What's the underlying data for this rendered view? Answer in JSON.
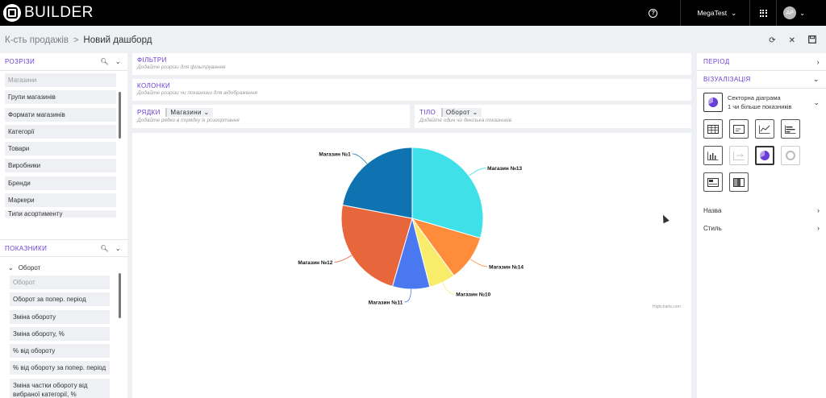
{
  "app": {
    "brand": "BUILDER"
  },
  "topbar": {
    "help": "?",
    "account": "MegaTest",
    "avatar": "AP"
  },
  "breadcrumb": {
    "parent": "К-сть продажів",
    "separator": ">",
    "current": "Новий дашборд"
  },
  "left": {
    "dims": {
      "title": "РОЗРІЗИ",
      "placeholder": "Магазини",
      "items": [
        "Групи магазинів",
        "Формати магазинів",
        "Категорії",
        "Товари",
        "Виробники",
        "Бренди",
        "Маркери",
        "Типи асортименту"
      ]
    },
    "measures": {
      "title": "ПОКАЗНИКИ",
      "group": "Оборот",
      "placeholder": "Оборот",
      "items": [
        "Оборот за попер. період",
        "Зміна обороту",
        "Зміна обороту, %",
        "% від обороту",
        "% від обороту за попер. період",
        "Зміна частки обороту від вибраної категорії, %"
      ]
    }
  },
  "filters": {
    "title": "ФІЛЬТРИ",
    "hint": "Додайте розрізи для фільтрування"
  },
  "columns": {
    "title": "КОЛОНКИ",
    "hint": "Додайте розрізи чи показники для відображення"
  },
  "rows": {
    "title": "РЯДКИ",
    "chip": "Магазини",
    "hint": "Додайте рядки в порядку їх розгортання"
  },
  "body": {
    "title": "ТІЛО",
    "chip": "Оборот",
    "hint": "Додайте один чи декілька показників"
  },
  "chart_data": {
    "type": "pie",
    "slices": [
      {
        "label": "Магазин №13",
        "value": 29.5,
        "color": "#40e0e8"
      },
      {
        "label": "Магазин №14",
        "value": 10.5,
        "color": "#ff8c3a"
      },
      {
        "label": "Магазин №10",
        "value": 6,
        "color": "#f9ec6b"
      },
      {
        "label": "Магазин №11",
        "value": 8.5,
        "color": "#4a78f0"
      },
      {
        "label": "Магазин №12",
        "value": 23.5,
        "color": "#e8663c"
      },
      {
        "label": "Магазин №1",
        "value": 22,
        "color": "#0e73b0"
      }
    ],
    "credit": "Highcharts.com"
  },
  "right": {
    "period": "ПЕРІОД",
    "viz": "ВІЗУАЛІЗАЦІЯ",
    "selected_name": "Секторна діаграма",
    "selected_desc": "1 чи більше показників",
    "name": "Назва",
    "style": "Стиль"
  }
}
